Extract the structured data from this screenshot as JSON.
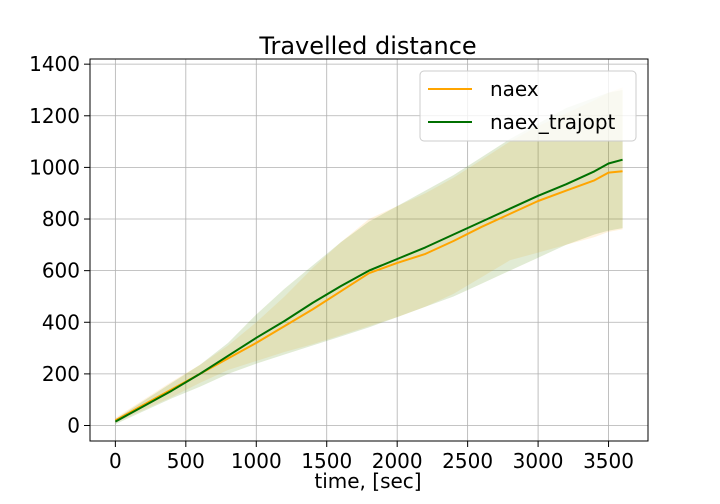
{
  "chart_data": {
    "type": "line",
    "title": "Travelled distance",
    "xlabel": "time, [sec]",
    "ylabel": "",
    "xlim": [
      -180,
      3780
    ],
    "ylim": [
      -60,
      1420
    ],
    "xticks": [
      0,
      500,
      1000,
      1500,
      2000,
      2500,
      3000,
      3500
    ],
    "yticks": [
      0,
      200,
      400,
      600,
      800,
      1000,
      1200,
      1400
    ],
    "grid": true,
    "legend_position": "top-right",
    "x": [
      0,
      200,
      400,
      600,
      800,
      1000,
      1200,
      1400,
      1600,
      1800,
      2000,
      2200,
      2400,
      2600,
      2800,
      3000,
      3200,
      3400,
      3500,
      3600
    ],
    "series": [
      {
        "name": "naex",
        "color": "#ffa500",
        "band_color": "#ffa500",
        "values": [
          20,
          80,
          140,
          200,
          260,
          320,
          385,
          450,
          520,
          590,
          630,
          665,
          715,
          770,
          820,
          870,
          910,
          950,
          980,
          985
        ],
        "lower": [
          10,
          60,
          110,
          165,
          215,
          250,
          285,
          315,
          350,
          385,
          420,
          460,
          510,
          575,
          640,
          670,
          700,
          730,
          750,
          760
        ],
        "upper": [
          30,
          100,
          170,
          235,
          310,
          400,
          500,
          610,
          710,
          800,
          850,
          900,
          960,
          1030,
          1100,
          1160,
          1210,
          1260,
          1290,
          1310
        ]
      },
      {
        "name": "naex_trajopt",
        "color": "#007000",
        "band_color": "#6a9a2a",
        "values": [
          15,
          75,
          135,
          200,
          270,
          340,
          405,
          475,
          540,
          600,
          645,
          690,
          740,
          790,
          840,
          890,
          935,
          985,
          1015,
          1030
        ],
        "lower": [
          5,
          55,
          105,
          150,
          200,
          240,
          275,
          310,
          345,
          380,
          420,
          460,
          500,
          550,
          600,
          650,
          700,
          740,
          755,
          765
        ],
        "upper": [
          25,
          95,
          165,
          235,
          320,
          430,
          530,
          620,
          710,
          790,
          850,
          910,
          970,
          1040,
          1110,
          1170,
          1230,
          1270,
          1290,
          1300
        ]
      }
    ]
  }
}
